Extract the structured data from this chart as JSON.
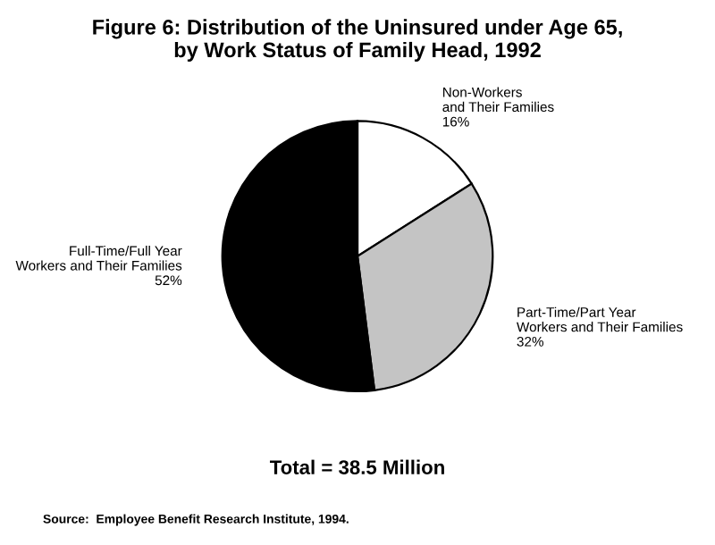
{
  "chart_data": {
    "type": "pie",
    "title": "Figure 6: Distribution of the Uninsured under Age 65,\nby Work Status of Family Head, 1992",
    "categories": [
      "Non-Workers\nand Their Families",
      "Part-Time/Part Year\nWorkers and Their Families",
      "Full-Time/Full Year\nWorkers and Their Families"
    ],
    "values": [
      16,
      32,
      52
    ],
    "value_labels": [
      "16%",
      "32%",
      "52%"
    ],
    "colors": [
      "#ffffff",
      "#c4c4c4",
      "#000000"
    ],
    "annotations": [
      "Total = 38.5 Million",
      "Source:  Employee Benefit Research Institute, 1994."
    ]
  }
}
